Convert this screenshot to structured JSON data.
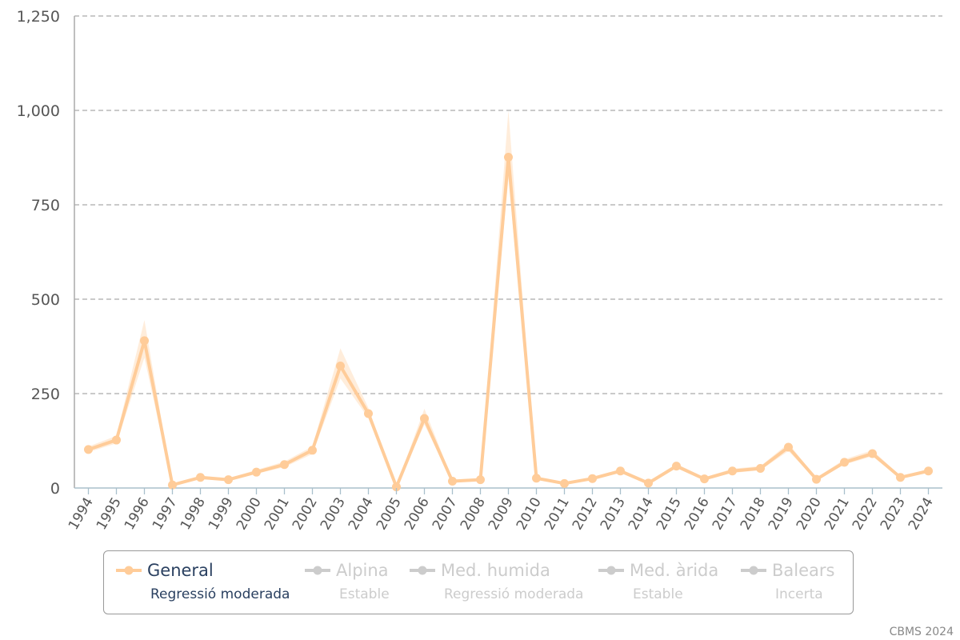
{
  "chart_data": {
    "type": "line",
    "title": "",
    "xlabel": "",
    "ylabel": "",
    "x": [
      "1994",
      "1995",
      "1996",
      "1997",
      "1998",
      "1999",
      "2000",
      "2001",
      "2002",
      "2003",
      "2004",
      "2005",
      "2006",
      "2007",
      "2008",
      "2009",
      "2010",
      "2011",
      "2012",
      "2013",
      "2014",
      "2015",
      "2016",
      "2017",
      "2018",
      "2019",
      "2020",
      "2021",
      "2022",
      "2023",
      "2024"
    ],
    "ylim": [
      0,
      1250
    ],
    "yticks": [
      0,
      250,
      500,
      750,
      1000,
      1250
    ],
    "ytick_labels": [
      "0",
      "250",
      "500",
      "750",
      "1,000",
      "1,250"
    ],
    "grid": true,
    "legend_position": "bottom",
    "series": [
      {
        "name": "General",
        "trend": "Regressió moderada",
        "color": "#ffcc99",
        "visible": true,
        "values": [
          102,
          127,
          390,
          8,
          28,
          22,
          42,
          62,
          100,
          323,
          197,
          3,
          184,
          18,
          22,
          876,
          26,
          12,
          25,
          45,
          13,
          58,
          24,
          45,
          52,
          108,
          23,
          68,
          91,
          28,
          45
        ],
        "lower": [
          95,
          118,
          345,
          5,
          24,
          19,
          38,
          55,
          90,
          290,
          185,
          2,
          168,
          15,
          19,
          820,
          22,
          10,
          22,
          40,
          11,
          53,
          21,
          40,
          47,
          98,
          20,
          62,
          84,
          25,
          41
        ],
        "upper": [
          110,
          138,
          445,
          11,
          32,
          26,
          48,
          70,
          110,
          370,
          212,
          5,
          210,
          22,
          26,
          1000,
          30,
          15,
          29,
          50,
          16,
          64,
          28,
          51,
          58,
          118,
          27,
          76,
          100,
          32,
          50
        ]
      },
      {
        "name": "Alpina",
        "trend": "Estable",
        "color": "#cccccc",
        "visible": false
      },
      {
        "name": "Med. humida",
        "trend": "Regressió moderada",
        "color": "#cccccc",
        "visible": false
      },
      {
        "name": "Med. àrida",
        "trend": "Estable",
        "color": "#cccccc",
        "visible": false
      },
      {
        "name": "Balears",
        "trend": "Incerta",
        "color": "#cccccc",
        "visible": false
      }
    ]
  },
  "credit": "CBMS 2024"
}
